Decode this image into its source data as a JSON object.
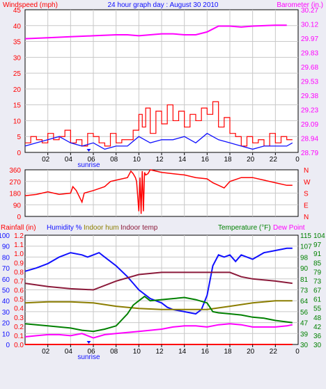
{
  "colors": {
    "bg": "#ececf4",
    "plot": "#ffffff",
    "grid": "#c8c8c8",
    "wind_avg": "#1010ff",
    "wind_gust": "#ff0000",
    "barometer": "#ff00ff",
    "direction": "#ff0000",
    "rainfall": "#ff0000",
    "humidity": "#1010ff",
    "indoor_hum": "#8b7d00",
    "indoor_temp": "#8b1a3a",
    "temperature": "#008000",
    "dew_point": "#ff00ff",
    "sunrise_mark": "#1010ff"
  },
  "chart_data": [
    {
      "type": "line",
      "title": "24 hour graph day : August 30 2010",
      "ylabel_left": "Windspeed (mph)",
      "ylabel_right": "Barometer (in.)",
      "x_ticks": [
        "02",
        "04",
        "06",
        "08",
        "10",
        "12",
        "14",
        "16",
        "18",
        "20",
        "22"
      ],
      "x_end_tick": "0",
      "sunrise_label": "sunrise",
      "ylim_left": [
        0,
        45
      ],
      "yticks_left": [
        "0",
        "5",
        "10",
        "15",
        "20",
        "25",
        "30",
        "35",
        "40",
        "45"
      ],
      "ylim_right": [
        28.79,
        30.27
      ],
      "yticks_right": [
        "28.79",
        "28.94",
        "29.09",
        "29.23",
        "29.38",
        "29.53",
        "29.68",
        "29.83",
        "29.97",
        "30.12",
        "30.27"
      ],
      "grid": true,
      "series": [
        {
          "name": "barometer",
          "axis": "right",
          "x": [
            0,
            2,
            4,
            6,
            8,
            9,
            10,
            11,
            12,
            13,
            14,
            15,
            16,
            16.5,
            17,
            18,
            19,
            20,
            22,
            23
          ],
          "values": [
            29.97,
            29.98,
            29.99,
            30.0,
            30.01,
            30.01,
            30.0,
            30.01,
            30.02,
            30.02,
            30.01,
            30.01,
            30.04,
            30.07,
            30.1,
            30.1,
            30.09,
            30.1,
            30.11,
            30.11
          ]
        },
        {
          "name": "wind gust",
          "axis": "left",
          "x": [
            0,
            0.5,
            1,
            1.5,
            2,
            2.5,
            3,
            3.5,
            4,
            4.5,
            5,
            5.5,
            6,
            6.5,
            7,
            7.5,
            8,
            8.5,
            9,
            9.5,
            10,
            10.3,
            10.6,
            11,
            11.5,
            12,
            12.5,
            13,
            13.5,
            14,
            14.5,
            15,
            15.5,
            16,
            16.5,
            17,
            17.5,
            18,
            18.5,
            19,
            19.5,
            20,
            20.5,
            21,
            21.5,
            22,
            22.5,
            23,
            23.5
          ],
          "values": [
            3,
            5,
            4,
            3,
            6,
            4,
            5,
            7,
            3,
            4,
            2,
            6,
            5,
            3,
            2,
            6,
            3,
            4,
            4,
            7,
            12,
            8,
            14,
            6,
            13,
            9,
            15,
            10,
            13,
            8,
            12,
            10,
            14,
            12,
            16,
            8,
            11,
            6,
            5,
            2,
            5,
            3,
            4,
            2,
            6,
            3,
            5,
            4,
            4
          ]
        },
        {
          "name": "wind average",
          "axis": "left",
          "x": [
            0,
            1,
            2,
            3,
            4,
            5,
            6,
            7,
            8,
            9,
            10,
            11,
            12,
            13,
            14,
            15,
            16,
            17,
            18,
            19,
            20,
            21,
            22,
            23,
            23.5
          ],
          "values": [
            2,
            3,
            4,
            5,
            3,
            2,
            3,
            1,
            2,
            2,
            5,
            3,
            4,
            4,
            5,
            3,
            6,
            4,
            3,
            2,
            1,
            2,
            2,
            2,
            3
          ]
        }
      ]
    },
    {
      "type": "line",
      "ylim": [
        0,
        360
      ],
      "yticks_left": [
        "0",
        "90",
        "180",
        "270",
        "360"
      ],
      "yticks_right": [
        "N",
        "E",
        "S",
        "W",
        "N"
      ],
      "grid": true,
      "series": [
        {
          "name": "wind direction",
          "x": [
            0,
            1,
            2,
            3,
            4,
            4.2,
            4.5,
            5,
            5.2,
            6,
            7,
            7.5,
            8,
            9,
            9.3,
            9.5,
            9.7,
            9.8,
            10,
            10.1,
            10.2,
            10.3,
            10.4,
            10.5,
            10.6,
            10.8,
            11,
            12,
            13,
            14,
            15,
            16,
            16.5,
            17,
            17.5,
            18,
            19,
            20,
            21,
            22,
            23,
            23.5
          ],
          "values": [
            160,
            170,
            190,
            170,
            180,
            230,
            200,
            110,
            180,
            200,
            230,
            270,
            280,
            300,
            350,
            330,
            300,
            270,
            40,
            300,
            20,
            350,
            40,
            340,
            320,
            330,
            360,
            340,
            330,
            320,
            300,
            290,
            260,
            240,
            220,
            270,
            300,
            300,
            280,
            260,
            240,
            240
          ]
        }
      ]
    },
    {
      "type": "line",
      "legend": [
        "Rainfall (in)",
        "Humidity %",
        "Indoor hum",
        "Indoor temp",
        "Temperature (°F)",
        "Dew Point"
      ],
      "yticks_rain": [
        "0.0",
        "0.1",
        "0.2",
        "0.3",
        "0.4",
        "0.5",
        "0.6",
        "0.7",
        "0.8",
        "0.9",
        "1.0",
        "1.1",
        "1.2"
      ],
      "yticks_hum": [
        "0",
        "10",
        "20",
        "30",
        "40",
        "50",
        "60",
        "70",
        "80",
        "90",
        "100"
      ],
      "yticks_temp_a": [
        "30",
        "39",
        "47",
        "56",
        "64",
        "73",
        "81",
        "90",
        "98",
        "107",
        "115"
      ],
      "yticks_temp_b": [
        "30",
        "36",
        "42",
        "48",
        "55",
        "61",
        "67",
        "73",
        "79",
        "85",
        "91",
        "97",
        "104"
      ],
      "ylim": [
        0,
        100
      ],
      "grid": true,
      "series": [
        {
          "name": "Humidity %",
          "x": [
            0,
            1,
            2,
            3,
            4,
            5,
            5.5,
            6,
            6.5,
            7,
            8,
            9,
            9.5,
            10,
            11,
            12,
            12.5,
            13,
            14,
            15,
            15.5,
            16,
            16.5,
            17,
            17.5,
            18,
            18.5,
            19,
            19.5,
            20,
            21,
            22,
            23,
            23.5
          ],
          "values": [
            67,
            70,
            74,
            80,
            84,
            82,
            80,
            82,
            84,
            80,
            72,
            62,
            56,
            50,
            42,
            38,
            34,
            32,
            30,
            28,
            32,
            45,
            72,
            82,
            80,
            82,
            76,
            82,
            80,
            78,
            84,
            86,
            88,
            88
          ]
        },
        {
          "name": "Indoor hum",
          "x": [
            0,
            2,
            4,
            6,
            8,
            10,
            12,
            14,
            16,
            18,
            20,
            22,
            23.5
          ],
          "values": [
            38,
            39,
            39,
            38,
            35,
            33,
            32,
            32,
            32,
            35,
            38,
            40,
            40
          ]
        },
        {
          "name": "Indoor temp",
          "x": [
            0,
            2,
            4,
            6,
            8,
            10,
            12,
            14,
            16,
            18,
            19,
            20,
            22,
            23.5
          ],
          "values": [
            56,
            53,
            51,
            50,
            58,
            64,
            66,
            66,
            66,
            66,
            62,
            60,
            58,
            56
          ]
        },
        {
          "name": "Temperature",
          "x": [
            0,
            2,
            4,
            5,
            6,
            7,
            8,
            9,
            9.5,
            10,
            10.5,
            11,
            12,
            13,
            14,
            15,
            16,
            16.5,
            17,
            18,
            19,
            20,
            21,
            22,
            23.5
          ],
          "values": [
            19,
            17,
            15,
            13,
            12,
            14,
            17,
            28,
            36,
            40,
            44,
            40,
            41,
            42,
            43,
            41,
            38,
            30,
            29,
            28,
            27,
            25,
            24,
            22,
            20
          ]
        },
        {
          "name": "Dew Point",
          "x": [
            0,
            1,
            2,
            3,
            4,
            5,
            6,
            7,
            8,
            9,
            10,
            11,
            12,
            13,
            14,
            15,
            16,
            17,
            18,
            19,
            20,
            21,
            22,
            23,
            23.5
          ],
          "values": [
            7,
            8,
            9,
            9,
            8,
            10,
            6,
            9,
            10,
            11,
            12,
            13,
            14,
            16,
            17,
            17,
            16,
            18,
            19,
            18,
            16,
            16,
            16,
            17,
            18
          ]
        },
        {
          "name": "Rainfall",
          "x": [
            0,
            23.5
          ],
          "values": [
            0,
            0
          ]
        }
      ]
    }
  ]
}
